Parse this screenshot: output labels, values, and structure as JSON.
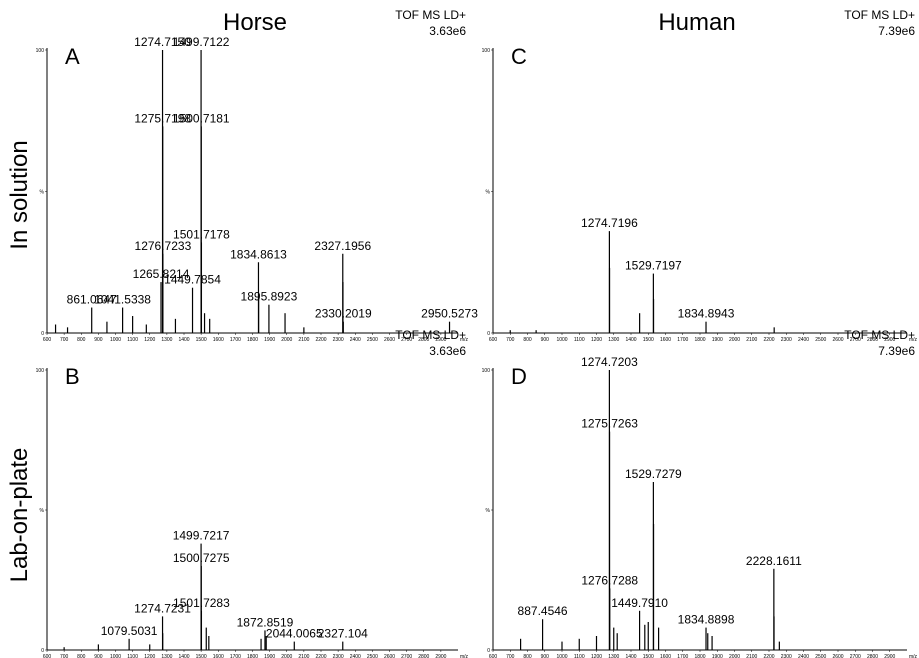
{
  "column_titles": [
    "Horse",
    "Human"
  ],
  "row_titles": [
    "In solution",
    "Lab-on-plate"
  ],
  "chart_data": [
    {
      "type": "spectrum",
      "panel_label": "A",
      "instrument": "TOF MS LD+",
      "intensity_scale": "3.63e6",
      "xlabel": "m/z",
      "color": "#000000",
      "xlim": [
        600,
        3000
      ],
      "xticks": [
        600,
        700,
        800,
        900,
        1000,
        1100,
        1200,
        1300,
        1400,
        1500,
        1600,
        1700,
        1800,
        1900,
        2000,
        2100,
        2200,
        2300,
        2400,
        2500,
        2600,
        2700,
        2800,
        2900
      ],
      "ylim": [
        0,
        100
      ],
      "yticks": [
        0,
        {
          "value": 50,
          "label": "%"
        },
        100
      ],
      "x": [
        650,
        720,
        861.0647,
        950,
        1041.5338,
        1100,
        1180,
        1265.8214,
        1274.715,
        1275.7198,
        1276.7233,
        1350,
        1449.7854,
        1499.7122,
        1500.7181,
        1501.7178,
        1520,
        1550,
        1834.8613,
        1835.86,
        1895.8923,
        1990,
        2100,
        2327.1956,
        2328.2,
        2330.2019,
        2950.5273
      ],
      "values": [
        3,
        2,
        9,
        4,
        9,
        6,
        3,
        18,
        100,
        73,
        28,
        5,
        16,
        100,
        73,
        32,
        7,
        5,
        25,
        12,
        10,
        7,
        2,
        28,
        18,
        4,
        4
      ],
      "x_labels": [
        null,
        null,
        "861.0647",
        null,
        "1041.5338",
        null,
        null,
        "1265.8214",
        "1274.7150",
        "1275.7198",
        "1276.7233",
        null,
        "1449.7854",
        "1499.7122",
        "1500.7181",
        "1501.7178",
        null,
        null,
        "1834.8613",
        null,
        "1895.8923",
        null,
        null,
        "2327.1956",
        null,
        "2330.2019",
        "2950.5273"
      ]
    },
    {
      "type": "spectrum",
      "panel_label": "B",
      "instrument": "TOF MS LD+",
      "intensity_scale": "3.63e6",
      "xlabel": "m/z",
      "color": "#000000",
      "xlim": [
        600,
        3000
      ],
      "xticks": [
        600,
        700,
        800,
        900,
        1000,
        1100,
        1200,
        1300,
        1400,
        1500,
        1600,
        1700,
        1800,
        1900,
        2000,
        2100,
        2200,
        2300,
        2400,
        2500,
        2600,
        2700,
        2800,
        2900
      ],
      "ylim": [
        0,
        100
      ],
      "yticks": [
        0,
        {
          "value": 50,
          "label": "%"
        },
        100
      ],
      "x": [
        700,
        900,
        1079.5031,
        1200,
        1274.7231,
        1275.72,
        1499.7217,
        1500.7275,
        1501.7283,
        1530,
        1545,
        1850,
        1872.8519,
        1880,
        2044.0065,
        2327.104
      ],
      "values": [
        1,
        2,
        4,
        2,
        12,
        6,
        38,
        30,
        14,
        8,
        5,
        4,
        7,
        5,
        3,
        3
      ],
      "x_labels": [
        null,
        null,
        "1079.5031",
        null,
        "1274.7231",
        null,
        "1499.7217",
        "1500.7275",
        "1501.7283",
        null,
        null,
        null,
        "1872.8519",
        null,
        "2044.0065",
        "2327.104"
      ]
    },
    {
      "type": "spectrum",
      "panel_label": "C",
      "instrument": "TOF MS LD+",
      "intensity_scale": "7.39e6",
      "xlabel": "m/z",
      "color": "#000000",
      "xlim": [
        600,
        3000
      ],
      "xticks": [
        600,
        700,
        800,
        900,
        1000,
        1100,
        1200,
        1300,
        1400,
        1500,
        1600,
        1700,
        1800,
        1900,
        2000,
        2100,
        2200,
        2300,
        2400,
        2500,
        2600,
        2700,
        2800,
        2900
      ],
      "ylim": [
        0,
        100
      ],
      "yticks": [
        0,
        {
          "value": 50,
          "label": "%"
        },
        100
      ],
      "x": [
        700,
        850,
        1274.7196,
        1275.72,
        1450,
        1529.7197,
        1530.72,
        1834.8943,
        2230
      ],
      "values": [
        1,
        1,
        36,
        23,
        7,
        21,
        12,
        4,
        2
      ],
      "x_labels": [
        null,
        null,
        "1274.7196",
        null,
        null,
        "1529.7197",
        null,
        "1834.8943",
        null
      ]
    },
    {
      "type": "spectrum",
      "panel_label": "D",
      "instrument": "TOF MS LD+",
      "intensity_scale": "7.39e6",
      "xlabel": "m/z",
      "color": "#000000",
      "xlim": [
        600,
        3000
      ],
      "xticks": [
        600,
        700,
        800,
        900,
        1000,
        1100,
        1200,
        1300,
        1400,
        1500,
        1600,
        1700,
        1800,
        1900,
        2000,
        2100,
        2200,
        2300,
        2400,
        2500,
        2600,
        2700,
        2800,
        2900
      ],
      "ylim": [
        0,
        100
      ],
      "yticks": [
        0,
        {
          "value": 50,
          "label": "%"
        },
        100
      ],
      "x": [
        760,
        887.4546,
        1000,
        1100,
        1200,
        1274.7203,
        1275.7263,
        1276.7288,
        1300,
        1320,
        1449.791,
        1480,
        1500,
        1529.7279,
        1530.73,
        1560,
        1834.8898,
        1845,
        1870,
        2228.1611,
        2229.16,
        2260
      ],
      "values": [
        4,
        11,
        3,
        4,
        5,
        100,
        78,
        22,
        8,
        6,
        14,
        9,
        10,
        60,
        45,
        8,
        8,
        6,
        5,
        29,
        12,
        3
      ],
      "x_labels": [
        null,
        "887.4546",
        null,
        null,
        null,
        "1274.7203",
        "1275.7263",
        "1276.7288",
        null,
        null,
        "1449.7910",
        null,
        null,
        "1529.7279",
        null,
        null,
        "1834.8898",
        null,
        null,
        "2228.1611",
        null,
        null
      ]
    }
  ]
}
